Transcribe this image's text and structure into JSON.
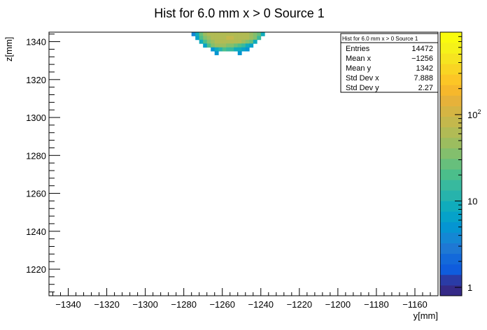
{
  "chart_data": {
    "type": "heatmap",
    "title": "Hist for 6.0 mm x > 0 Source 1",
    "xlabel": "y[mm]",
    "ylabel": "z[mm]",
    "xlim": [
      -1350,
      -1148
    ],
    "ylim": [
      1206,
      1345
    ],
    "x_ticks": [
      -1340,
      -1320,
      -1300,
      -1280,
      -1260,
      -1240,
      -1220,
      -1200,
      -1180,
      -1160
    ],
    "x_tick_labels": [
      "−1340",
      "−1320",
      "−1300",
      "−1280",
      "−1260",
      "−1240",
      "−1220",
      "−1200",
      "−1180",
      "−1160"
    ],
    "y_ticks": [
      1220,
      1240,
      1260,
      1280,
      1300,
      1320,
      1340
    ],
    "y_tick_labels": [
      "1220",
      "1240",
      "1260",
      "1280",
      "1300",
      "1320",
      "1340"
    ],
    "z_scale": "log",
    "z_range": [
      0.8,
      900
    ],
    "z_tick_labels": [
      "1",
      "10",
      "10^2"
    ],
    "grid": false,
    "bin_width": 2,
    "bins": [
      {
        "y_low": 1343,
        "y_high": 1345,
        "x_low": -1276,
        "x_high": -1238,
        "values": [
          4,
          8,
          28,
          45,
          55,
          60,
          62,
          65,
          68,
          70,
          68,
          65,
          62,
          58,
          55,
          48,
          40,
          30,
          10
        ]
      },
      {
        "y_low": 1341,
        "y_high": 1343,
        "x_low": -1274,
        "x_high": -1240,
        "values": [
          6,
          20,
          38,
          50,
          58,
          62,
          65,
          70,
          75,
          72,
          70,
          68,
          62,
          58,
          50,
          40,
          14
        ]
      },
      {
        "y_low": 1339,
        "y_high": 1341,
        "x_low": -1272,
        "x_high": -1242,
        "values": [
          8,
          22,
          40,
          52,
          60,
          64,
          68,
          66,
          64,
          60,
          56,
          48,
          36,
          26,
          10
        ]
      },
      {
        "y_low": 1337,
        "y_high": 1339,
        "x_low": -1270,
        "x_high": -1244,
        "values": [
          7,
          18,
          34,
          46,
          44,
          50,
          40,
          38,
          30,
          20,
          14,
          8,
          6
        ]
      },
      {
        "y_low": 1335,
        "y_high": 1337,
        "x_low": -1266,
        "x_high": -1246,
        "values": [
          5,
          9,
          12,
          20,
          16,
          14,
          10,
          8,
          7,
          5
        ]
      },
      {
        "y_low": 1333,
        "y_high": 1335,
        "x_low": -1264,
        "x_high": -1250,
        "values": [
          5,
          0,
          0,
          0,
          0,
          0,
          5
        ]
      }
    ],
    "stats": {
      "title": "Hist for 6.0 mm x > 0 Source 1",
      "rows": [
        {
          "label": "Entries",
          "value": "14472"
        },
        {
          "label": "Mean x",
          "value": "−1256"
        },
        {
          "label": "Mean y",
          "value": "1342"
        },
        {
          "label": "Std Dev x",
          "value": "7.888"
        },
        {
          "label": "Std Dev y",
          "value": "2.27"
        }
      ]
    },
    "palette": [
      "#352a87",
      "#2a3ba6",
      "#0f5cdd",
      "#1369da",
      "#1e78d4",
      "#1487d4",
      "#0595d2",
      "#06a2c9",
      "#10acbc",
      "#27b3ac",
      "#38b99e",
      "#4bbe8b",
      "#67bf7c",
      "#83bf6d",
      "#9cbd5f",
      "#b1bb55",
      "#c4b84c",
      "#d5b543",
      "#e6b23a",
      "#f6b82c",
      "#fcc626",
      "#f9d523",
      "#f6e420",
      "#f5f219",
      "#f9fb0e"
    ]
  }
}
